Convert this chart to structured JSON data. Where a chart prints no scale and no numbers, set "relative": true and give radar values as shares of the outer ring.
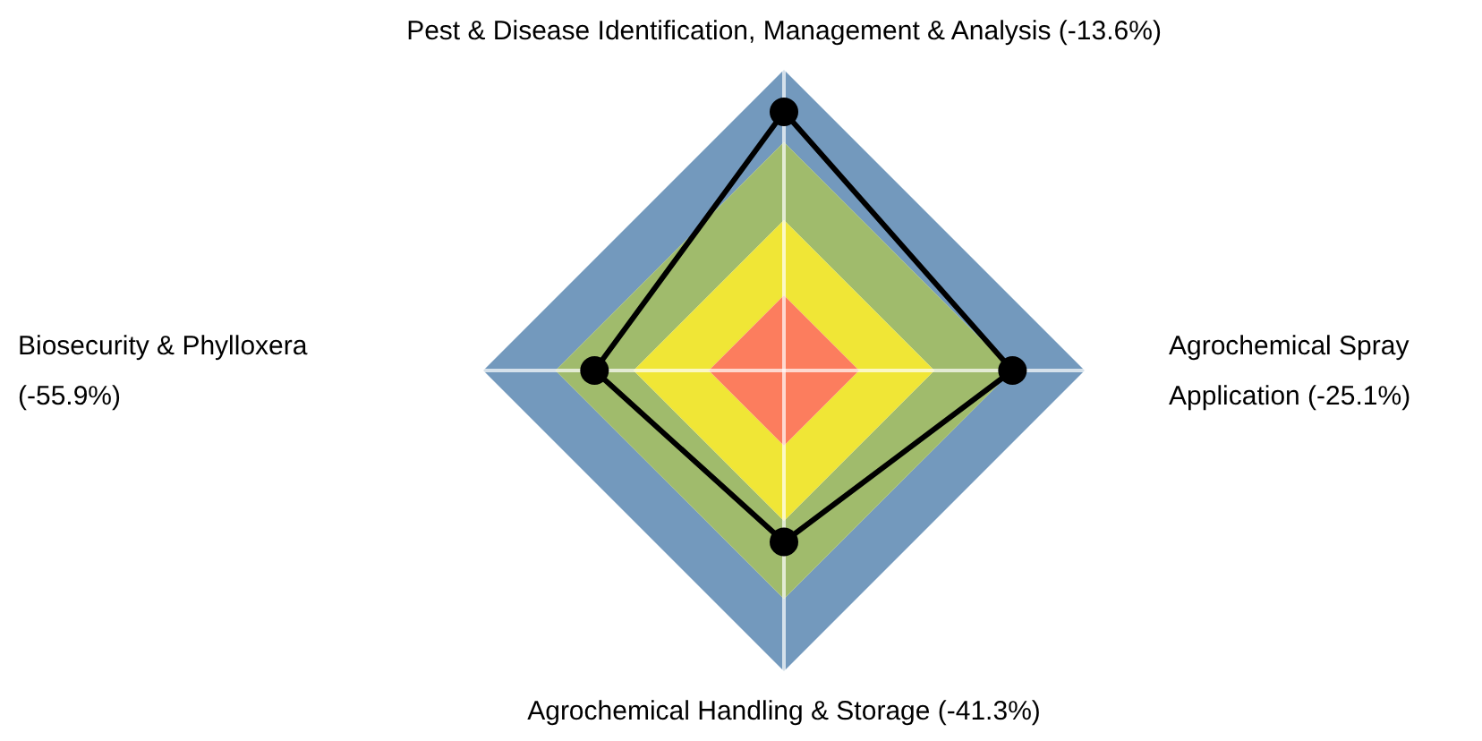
{
  "chart_data": {
    "type": "radar",
    "relative": true,
    "marker": "circle",
    "categories": [
      "Pest & Disease Identification, Management & Analysis (-13.6%)",
      "Agrochemical Spray Application (-25.1%)",
      "Agrochemical Handling & Storage (-41.3%)",
      "Biosecurity & Phylloxera (-55.9%)"
    ],
    "series": [
      {
        "color": "#000000",
        "values": [
          0.86,
          0.76,
          0.57,
          0.63
        ]
      }
    ]
  }
}
